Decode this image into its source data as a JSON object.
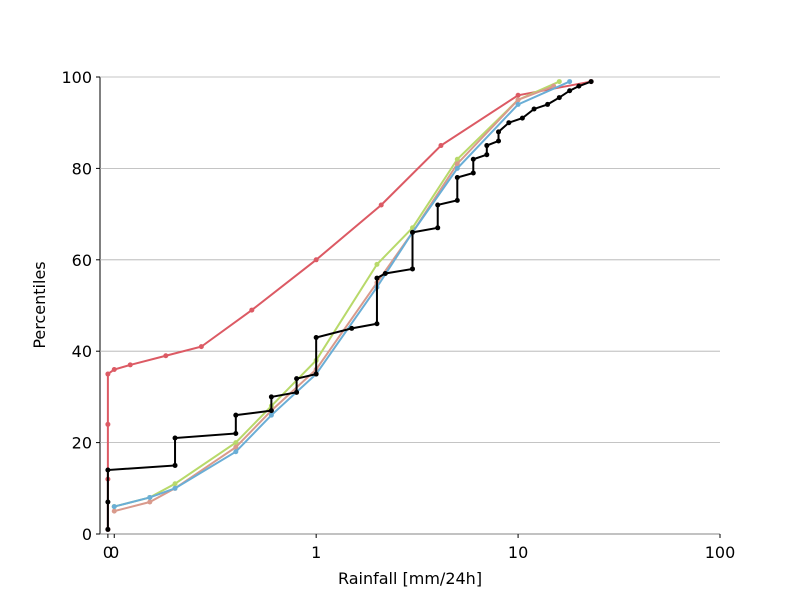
{
  "chart_data": {
    "type": "line",
    "x_label": "Rainfall [mm/24h]",
    "y_label": "Percentiles",
    "xscale": "log",
    "xlim": [
      0.085,
      100
    ],
    "ylim": [
      0,
      100
    ],
    "xticks": [
      {
        "value": 0.093,
        "label": "0"
      },
      {
        "value": 0.1,
        "label": "0"
      },
      1,
      10,
      100
    ],
    "yticks": [
      0,
      20,
      40,
      60,
      80,
      100
    ],
    "grid": "y",
    "series": [
      {
        "color": "#dc5a64",
        "x": [
          0.093,
          0.093,
          0.093,
          0.093,
          0.1,
          0.12,
          0.18,
          0.27,
          0.48,
          1,
          2.1,
          4.15,
          10,
          23
        ],
        "values": [
          1,
          12,
          24,
          35,
          36,
          37,
          39,
          41,
          49,
          60,
          72,
          85,
          96,
          99
        ]
      },
      {
        "color": "#b8d96a",
        "x": [
          0.1,
          0.15,
          0.2,
          0.4,
          0.6,
          1,
          2,
          3,
          5,
          10,
          16
        ],
        "values": [
          6,
          8,
          11,
          20,
          28,
          38,
          59,
          67,
          82,
          95,
          99
        ]
      },
      {
        "color": "#d99a8c",
        "x": [
          0.1,
          0.15,
          0.2,
          0.4,
          0.6,
          1,
          2,
          3,
          5,
          10,
          15
        ],
        "values": [
          5,
          7,
          10,
          19,
          27,
          36,
          55,
          66,
          81,
          95,
          98
        ]
      },
      {
        "color": "#6aaed6",
        "x": [
          0.1,
          0.15,
          0.2,
          0.4,
          0.6,
          1,
          2,
          3,
          5,
          10,
          18
        ],
        "values": [
          6,
          8,
          10,
          18,
          26,
          35,
          54,
          66,
          80,
          94,
          99
        ]
      },
      {
        "color": "#000000",
        "x": [
          0.093,
          0.093,
          0.093,
          0.2,
          0.2,
          0.4,
          0.4,
          0.6,
          0.6,
          0.8,
          0.8,
          1,
          1,
          1.5,
          2,
          2,
          2.2,
          3,
          3,
          4,
          4,
          5,
          5,
          6,
          6,
          7,
          7,
          8,
          8,
          9,
          10.5,
          12,
          14,
          16,
          18,
          20,
          23
        ],
        "values": [
          1,
          7,
          14,
          15,
          21,
          22,
          26,
          27,
          30,
          31,
          34,
          35,
          43,
          45,
          46,
          56,
          57,
          58,
          66,
          67,
          72,
          73,
          78,
          79,
          82,
          83,
          85,
          86,
          88,
          90,
          91,
          93,
          94,
          95.5,
          97,
          98,
          99
        ]
      }
    ]
  }
}
